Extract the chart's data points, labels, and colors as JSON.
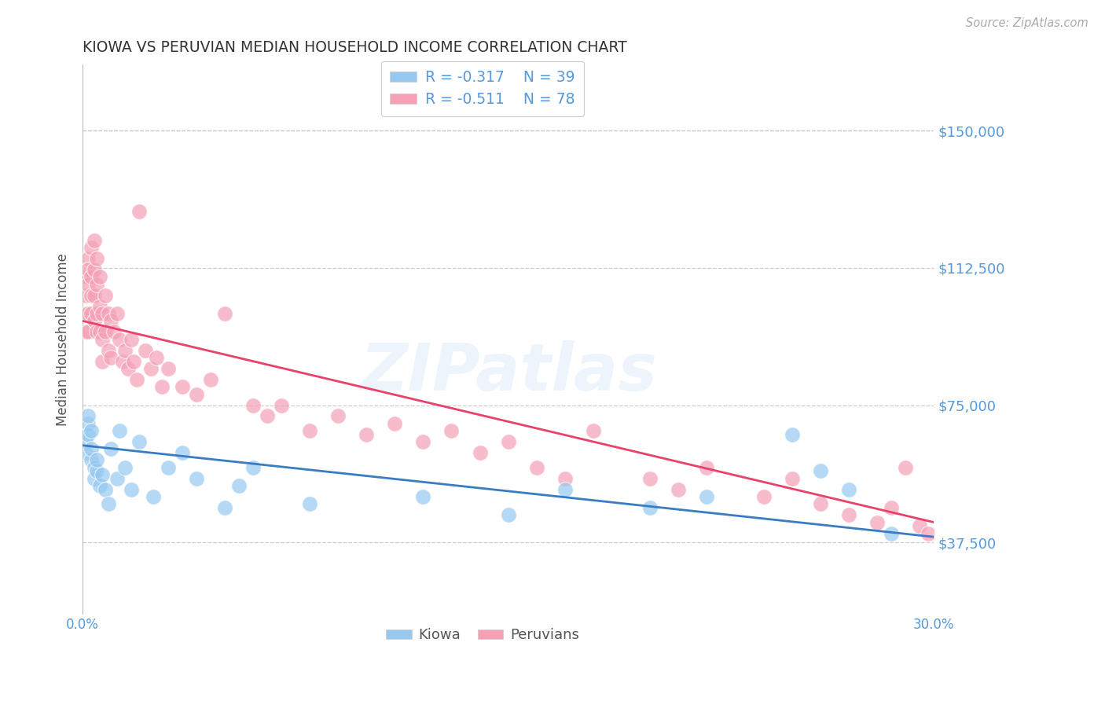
{
  "title": "KIOWA VS PERUVIAN MEDIAN HOUSEHOLD INCOME CORRELATION CHART",
  "source": "Source: ZipAtlas.com",
  "ylabel": "Median Household Income",
  "watermark": "ZIPatlas",
  "xlim": [
    0.0,
    0.3
  ],
  "ylim": [
    18000,
    168000
  ],
  "yticks": [
    37500,
    75000,
    112500,
    150000
  ],
  "ytick_labels": [
    "$37,500",
    "$75,000",
    "$112,500",
    "$150,000"
  ],
  "xticks": [
    0.0,
    0.05,
    0.1,
    0.15,
    0.2,
    0.25,
    0.3
  ],
  "xtick_labels": [
    "0.0%",
    "",
    "",
    "",
    "",
    "",
    "30.0%"
  ],
  "kiowa_color": "#96C8F0",
  "peruvian_color": "#F5A0B5",
  "kiowa_line_color": "#3A7CC4",
  "peruvian_line_color": "#E8426A",
  "background_color": "#FFFFFF",
  "grid_color": "#CCCCCC",
  "axis_label_color": "#555555",
  "tick_color": "#5599DD",
  "title_color": "#333333",
  "kiowa_x": [
    0.001,
    0.001,
    0.002,
    0.002,
    0.002,
    0.003,
    0.003,
    0.003,
    0.004,
    0.004,
    0.005,
    0.005,
    0.006,
    0.007,
    0.008,
    0.009,
    0.01,
    0.012,
    0.013,
    0.015,
    0.017,
    0.02,
    0.025,
    0.03,
    0.035,
    0.04,
    0.05,
    0.055,
    0.06,
    0.08,
    0.12,
    0.15,
    0.17,
    0.2,
    0.22,
    0.25,
    0.26,
    0.27,
    0.285
  ],
  "kiowa_y": [
    65000,
    62000,
    70000,
    67000,
    72000,
    60000,
    68000,
    63000,
    58000,
    55000,
    57000,
    60000,
    53000,
    56000,
    52000,
    48000,
    63000,
    55000,
    68000,
    58000,
    52000,
    65000,
    50000,
    58000,
    62000,
    55000,
    47000,
    53000,
    58000,
    48000,
    50000,
    45000,
    52000,
    47000,
    50000,
    67000,
    57000,
    52000,
    40000
  ],
  "peruvian_x": [
    0.001,
    0.001,
    0.001,
    0.001,
    0.002,
    0.002,
    0.002,
    0.002,
    0.002,
    0.003,
    0.003,
    0.003,
    0.003,
    0.004,
    0.004,
    0.004,
    0.004,
    0.005,
    0.005,
    0.005,
    0.005,
    0.006,
    0.006,
    0.006,
    0.007,
    0.007,
    0.007,
    0.008,
    0.008,
    0.009,
    0.009,
    0.01,
    0.01,
    0.011,
    0.012,
    0.013,
    0.014,
    0.015,
    0.016,
    0.017,
    0.018,
    0.019,
    0.02,
    0.022,
    0.024,
    0.026,
    0.028,
    0.03,
    0.035,
    0.04,
    0.045,
    0.05,
    0.06,
    0.065,
    0.07,
    0.08,
    0.09,
    0.1,
    0.11,
    0.12,
    0.13,
    0.14,
    0.15,
    0.16,
    0.17,
    0.18,
    0.2,
    0.21,
    0.22,
    0.24,
    0.25,
    0.26,
    0.27,
    0.28,
    0.285,
    0.29,
    0.295,
    0.298
  ],
  "peruvian_y": [
    105000,
    110000,
    100000,
    95000,
    115000,
    108000,
    100000,
    112000,
    95000,
    118000,
    110000,
    105000,
    100000,
    120000,
    112000,
    105000,
    98000,
    115000,
    108000,
    100000,
    95000,
    110000,
    102000,
    95000,
    100000,
    93000,
    87000,
    105000,
    95000,
    100000,
    90000,
    98000,
    88000,
    95000,
    100000,
    93000,
    87000,
    90000,
    85000,
    93000,
    87000,
    82000,
    128000,
    90000,
    85000,
    88000,
    80000,
    85000,
    80000,
    78000,
    82000,
    100000,
    75000,
    72000,
    75000,
    68000,
    72000,
    67000,
    70000,
    65000,
    68000,
    62000,
    65000,
    58000,
    55000,
    68000,
    55000,
    52000,
    58000,
    50000,
    55000,
    48000,
    45000,
    43000,
    47000,
    58000,
    42000,
    40000
  ],
  "kiowa_trend_x": [
    0.0,
    0.3
  ],
  "kiowa_trend_y": [
    64000,
    39000
  ],
  "peruvian_trend_x": [
    0.0,
    0.3
  ],
  "peruvian_trend_y": [
    98000,
    43000
  ]
}
